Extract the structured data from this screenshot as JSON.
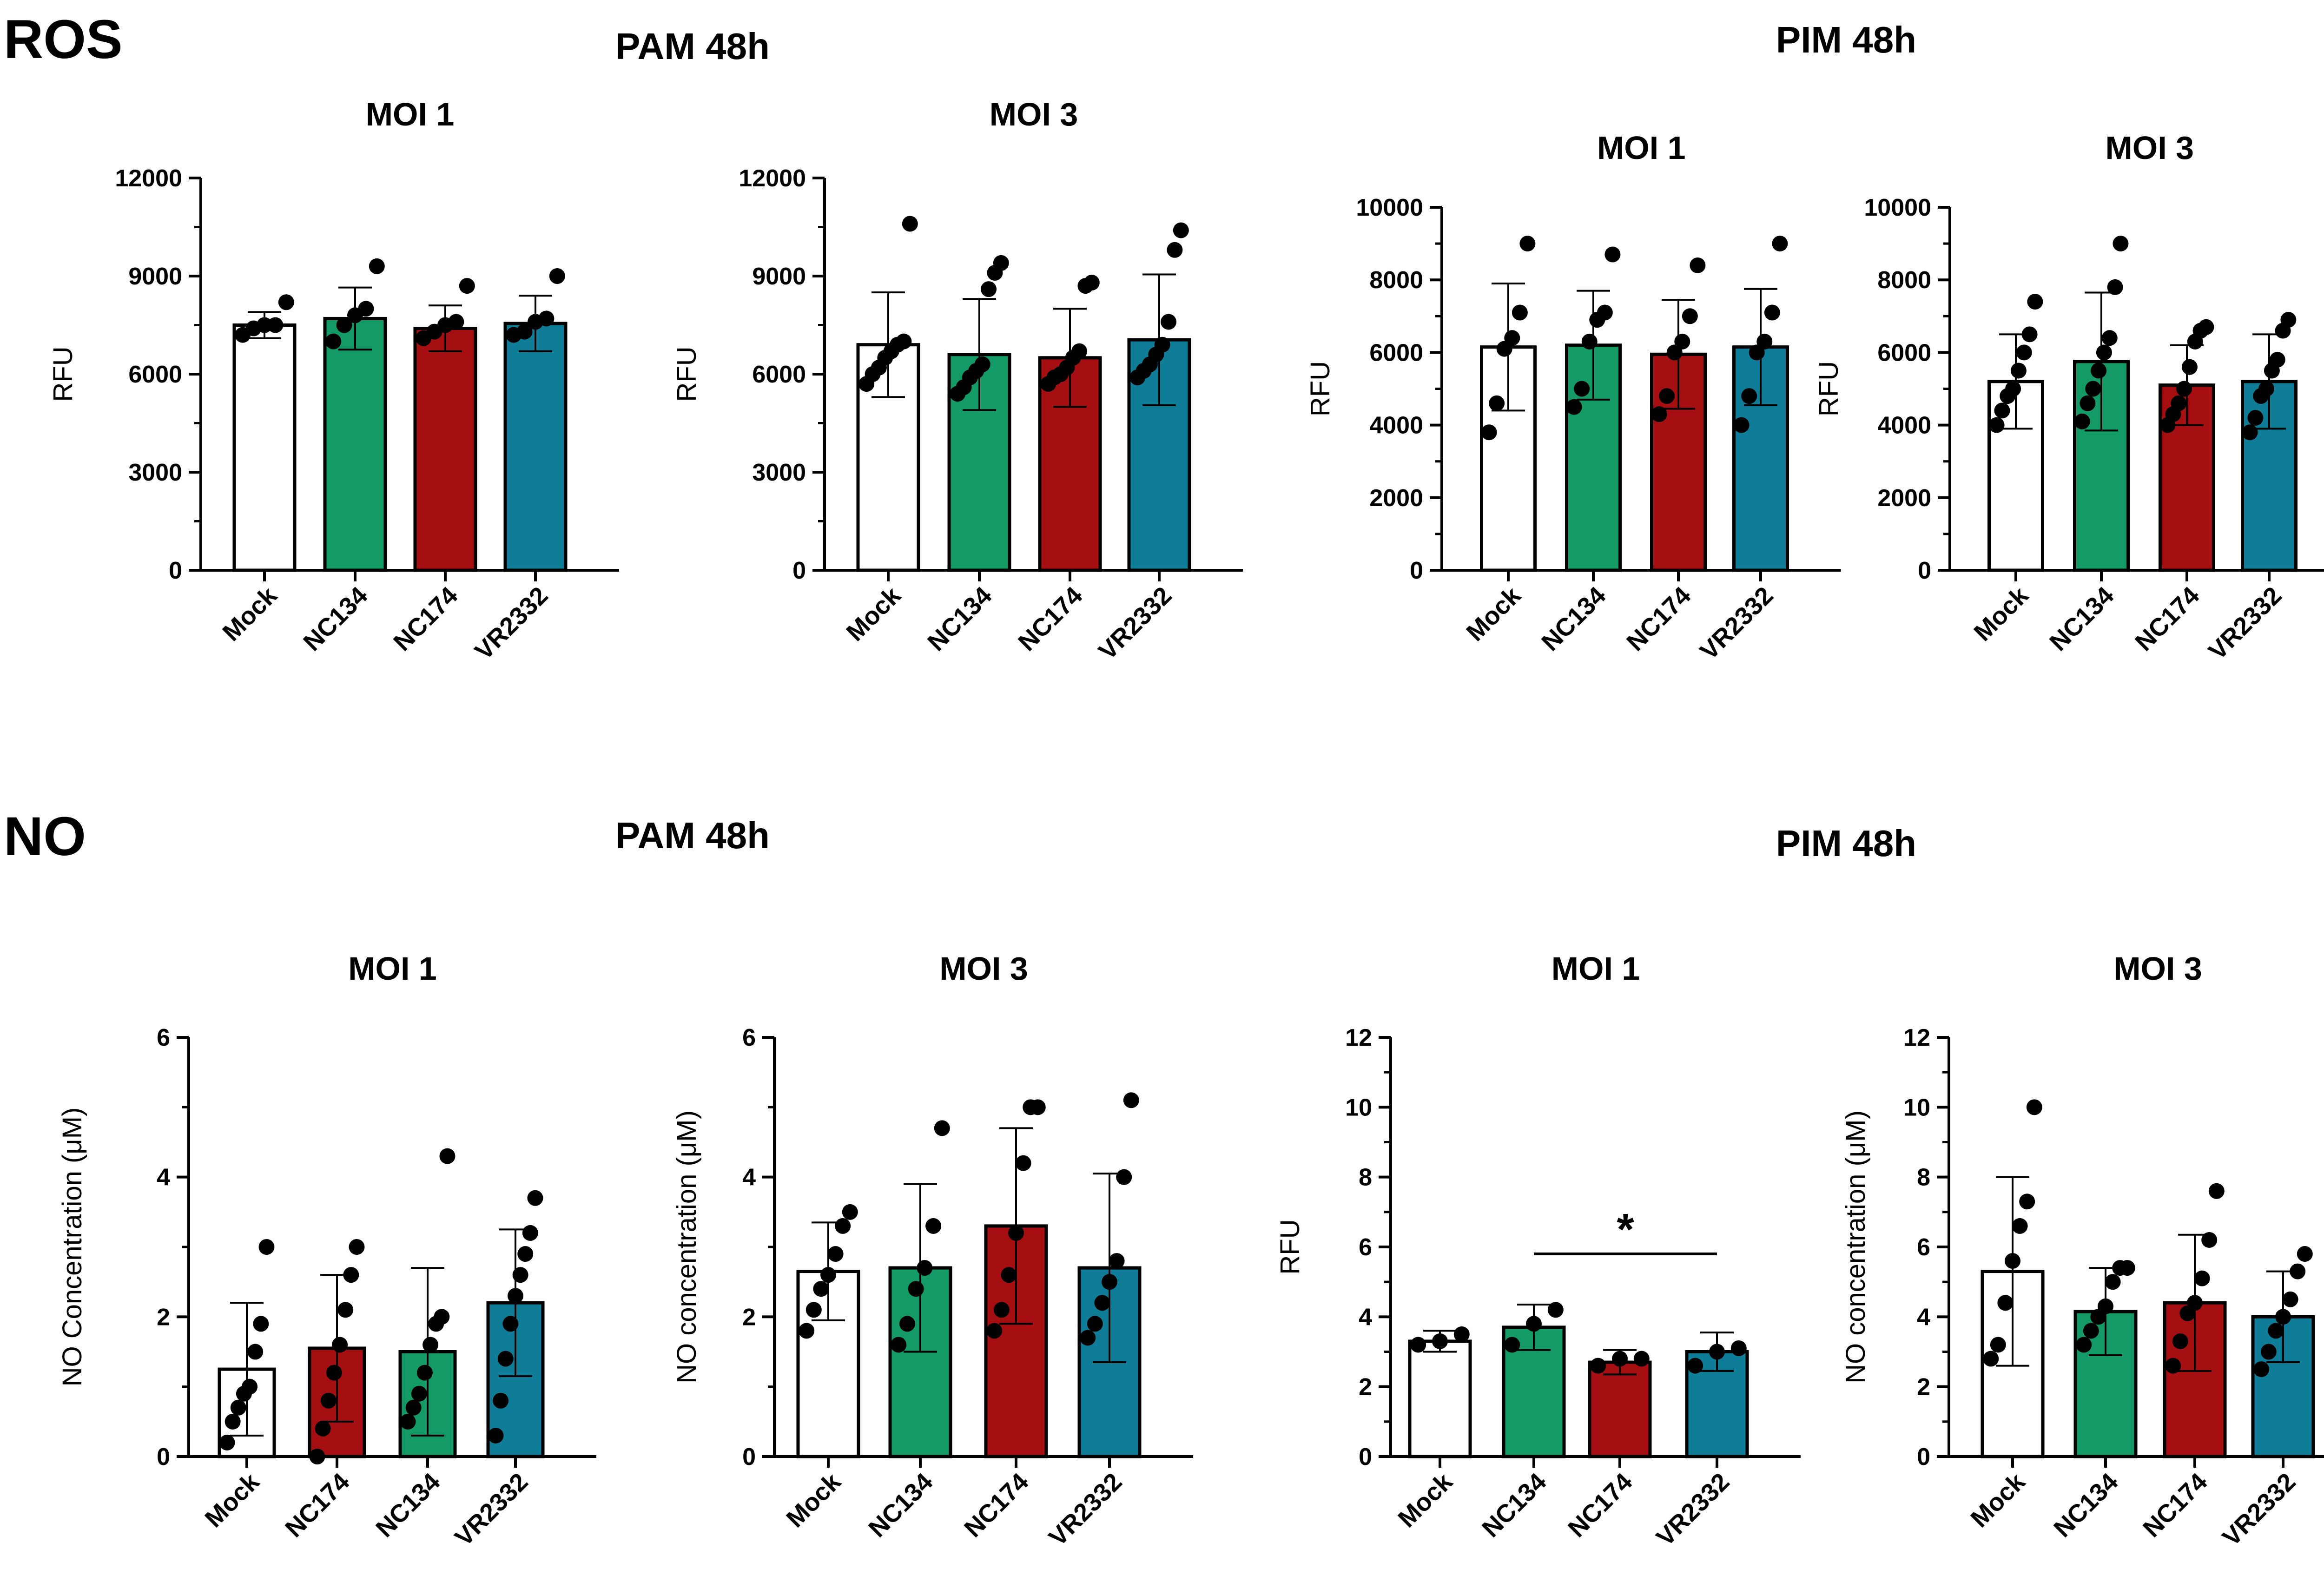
{
  "sections": {
    "ros": {
      "label": "ROS",
      "pam_title": "PAM 48h",
      "pim_title": "PIM 48h"
    },
    "no": {
      "label": "NO",
      "pam_title": "PAM 48h",
      "pim_title": "PIM 48h"
    }
  },
  "colors": {
    "Mock": "#ffffff",
    "NC134": "#149a64",
    "NC174": "#a60f12",
    "VR2332": "#0f7d97",
    "axis": "#000000"
  },
  "chart_data": [
    {
      "id": "ros_pam_moi1",
      "type": "bar",
      "title": "MOI 1",
      "ylabel": "RFU",
      "ylim": [
        0,
        12000
      ],
      "yticks": [
        0,
        3000,
        6000,
        9000,
        12000
      ],
      "categories": [
        "Mock",
        "NC134",
        "NC174",
        "VR2332"
      ],
      "values": [
        7500,
        7700,
        7400,
        7550
      ],
      "sd": [
        400,
        950,
        700,
        850
      ],
      "points": [
        [
          7200,
          7400,
          7500,
          7500,
          8200
        ],
        [
          7000,
          7500,
          7800,
          8000,
          9300
        ],
        [
          7100,
          7300,
          7500,
          7600,
          8700
        ],
        [
          7200,
          7300,
          7600,
          7700,
          9000
        ]
      ]
    },
    {
      "id": "ros_pam_moi3",
      "type": "bar",
      "title": "MOI 3",
      "ylabel": "RFU",
      "ylim": [
        0,
        12000
      ],
      "yticks": [
        0,
        3000,
        6000,
        9000,
        12000
      ],
      "categories": [
        "Mock",
        "NC134",
        "NC174",
        "VR2332"
      ],
      "values": [
        6900,
        6600,
        6500,
        7050
      ],
      "sd": [
        1600,
        1700,
        1500,
        2000
      ],
      "points": [
        [
          5700,
          6000,
          6200,
          6500,
          6700,
          6900,
          7000,
          10600
        ],
        [
          5400,
          5600,
          5900,
          6100,
          6300,
          8600,
          9100,
          9400
        ],
        [
          5700,
          5900,
          6000,
          6200,
          6500,
          6700,
          8700,
          8800
        ],
        [
          5900,
          6100,
          6300,
          6600,
          6900,
          7600,
          9800,
          10400
        ]
      ]
    },
    {
      "id": "pim_ros_moi1",
      "type": "bar",
      "title": "MOI 1",
      "ylabel": "RFU",
      "ylim": [
        0,
        10000
      ],
      "yticks": [
        0,
        2000,
        4000,
        6000,
        8000,
        10000
      ],
      "categories": [
        "Mock",
        "NC134",
        "NC174",
        "VR2332"
      ],
      "values": [
        6150,
        6200,
        5950,
        6150
      ],
      "sd": [
        1750,
        1500,
        1500,
        1600
      ],
      "points": [
        [
          3800,
          4600,
          6100,
          6400,
          7100,
          9000
        ],
        [
          4500,
          5000,
          6300,
          6900,
          7100,
          8700
        ],
        [
          4300,
          4800,
          6000,
          6300,
          7000,
          8400
        ],
        [
          4000,
          4800,
          6000,
          6300,
          7100,
          9000
        ]
      ]
    },
    {
      "id": "pim_ros_moi3",
      "type": "bar",
      "title": "MOI 3",
      "ylabel": "RFU",
      "ylim": [
        0,
        10000
      ],
      "yticks": [
        0,
        2000,
        4000,
        6000,
        8000,
        10000
      ],
      "categories": [
        "Mock",
        "NC134",
        "NC174",
        "VR2332"
      ],
      "values": [
        5200,
        5750,
        5100,
        5200
      ],
      "sd": [
        1300,
        1900,
        1100,
        1300
      ],
      "points": [
        [
          4000,
          4400,
          4800,
          5000,
          5500,
          6000,
          6500,
          7400
        ],
        [
          4100,
          4600,
          5000,
          5500,
          6000,
          6400,
          7800,
          9000
        ],
        [
          4000,
          4300,
          4600,
          5000,
          5600,
          6300,
          6600,
          6700
        ],
        [
          3800,
          4200,
          4800,
          5000,
          5500,
          5800,
          6600,
          6900
        ]
      ]
    },
    {
      "id": "no_pam_moi1",
      "type": "bar",
      "title": "MOI 1",
      "ylabel": "NO Concentration (μM)",
      "ylim": [
        0,
        6
      ],
      "yticks": [
        0,
        2,
        4,
        6
      ],
      "categories": [
        "Mock",
        "NC174",
        "NC134",
        "VR2332"
      ],
      "values": [
        1.25,
        1.55,
        1.5,
        2.2
      ],
      "sd": [
        0.95,
        1.05,
        1.2,
        1.05
      ],
      "points": [
        [
          0.2,
          0.5,
          0.7,
          0.9,
          1.0,
          1.5,
          1.9,
          3.0
        ],
        [
          0.0,
          0.4,
          0.8,
          1.2,
          1.6,
          2.1,
          2.6,
          3.0
        ],
        [
          0.5,
          0.7,
          0.9,
          1.2,
          1.6,
          1.9,
          2.0,
          4.3
        ],
        [
          0.3,
          0.8,
          1.4,
          1.9,
          2.3,
          2.6,
          2.9,
          3.2,
          3.7
        ]
      ]
    },
    {
      "id": "no_pam_moi3",
      "type": "bar",
      "title": "MOI 3",
      "ylabel": "NO concentration (μM)",
      "ylim": [
        0,
        6
      ],
      "yticks": [
        0,
        2,
        4,
        6
      ],
      "categories": [
        "Mock",
        "NC134",
        "NC174",
        "VR2332"
      ],
      "values": [
        2.65,
        2.7,
        3.3,
        2.7
      ],
      "sd": [
        0.7,
        1.2,
        1.4,
        1.35
      ],
      "points": [
        [
          1.8,
          2.1,
          2.4,
          2.6,
          2.9,
          3.3,
          3.5
        ],
        [
          1.6,
          1.9,
          2.4,
          2.7,
          3.3,
          4.7
        ],
        [
          1.8,
          2.1,
          2.6,
          3.2,
          4.2,
          5.0,
          5.0
        ],
        [
          1.7,
          1.9,
          2.2,
          2.5,
          2.8,
          4.0,
          5.1
        ]
      ]
    },
    {
      "id": "no_pim_moi1",
      "type": "bar",
      "title": "MOI 1",
      "ylabel": "RFU",
      "ylim": [
        0,
        12
      ],
      "yticks": [
        0,
        2,
        4,
        6,
        8,
        10,
        12
      ],
      "categories": [
        "Mock",
        "NC134",
        "NC174",
        "VR2332"
      ],
      "values": [
        3.3,
        3.7,
        2.7,
        3.0
      ],
      "sd": [
        0.3,
        0.65,
        0.35,
        0.55
      ],
      "points": [
        [
          3.2,
          3.3,
          3.5
        ],
        [
          3.2,
          3.8,
          4.2
        ],
        [
          2.6,
          2.8,
          2.8
        ],
        [
          2.6,
          3.0,
          3.1
        ]
      ],
      "significance": {
        "from": "NC134",
        "to": "VR2332",
        "label": "*",
        "y": 5.8
      }
    },
    {
      "id": "no_pim_moi3",
      "type": "bar",
      "title": "MOI 3",
      "ylabel": "NO concentration (μM)",
      "ylim": [
        0,
        12
      ],
      "yticks": [
        0,
        2,
        4,
        6,
        8,
        10,
        12
      ],
      "categories": [
        "Mock",
        "NC134",
        "NC174",
        "VR2332"
      ],
      "values": [
        5.3,
        4.15,
        4.4,
        4.0
      ],
      "sd": [
        2.7,
        1.25,
        1.95,
        1.3
      ],
      "points": [
        [
          2.8,
          3.2,
          4.4,
          5.6,
          6.6,
          7.3,
          10.0
        ],
        [
          3.2,
          3.6,
          4.0,
          4.3,
          5.0,
          5.4,
          5.4
        ],
        [
          2.6,
          3.3,
          4.1,
          4.4,
          5.1,
          6.2,
          7.6
        ],
        [
          2.5,
          3.0,
          3.6,
          4.0,
          4.5,
          5.3,
          5.8
        ]
      ]
    }
  ]
}
